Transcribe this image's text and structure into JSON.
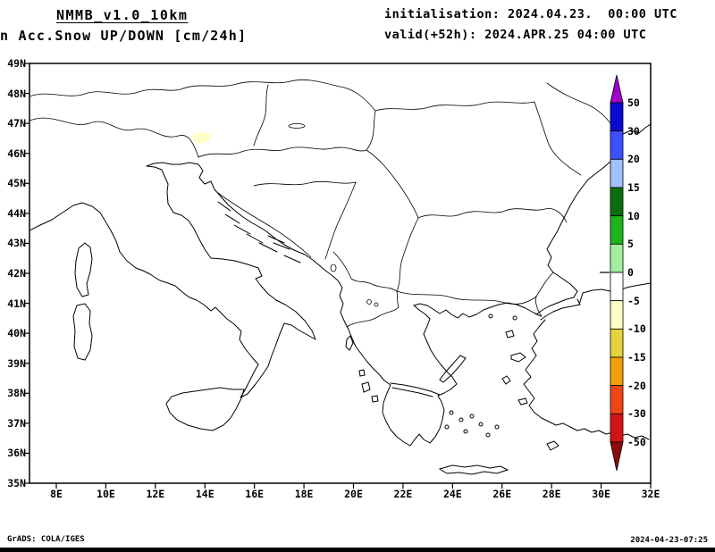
{
  "header": {
    "model": "NMMB_v1.0_10km",
    "product": "n Acc.Snow UP/DOWN [cm/24h]",
    "init": "initialisation: 2024.04.23.  00:00 UTC",
    "valid": "valid(+52h): 2024.APR.25 04:00 UTC"
  },
  "map": {
    "x_ticks": [
      "8E",
      "10E",
      "12E",
      "14E",
      "16E",
      "18E",
      "20E",
      "22E",
      "24E",
      "26E",
      "28E",
      "30E",
      "32E"
    ],
    "y_ticks": [
      "49N",
      "48N",
      "47N",
      "46N",
      "45N",
      "44N",
      "43N",
      "42N",
      "41N",
      "40N",
      "39N",
      "38N",
      "37N",
      "36N",
      "35N"
    ]
  },
  "colorbar": {
    "labels": [
      "50",
      "30",
      "20",
      "15",
      "10",
      "5",
      "0",
      "-5",
      "-10",
      "-15",
      "-20",
      "-30",
      "-50"
    ],
    "colors": [
      "#A000C8",
      "#0A0AD2",
      "#3C50FF",
      "#A0C0FF",
      "#0A6E0A",
      "#1EB41E",
      "#A0F0A0",
      "#FFFFFF",
      "#FFFFC8",
      "#E6D23C",
      "#F0A00A",
      "#F04614",
      "#D21414",
      "#8C0A0A"
    ]
  },
  "footer": {
    "left": "GrADS: COLA/IGES",
    "right": "2024-04-23-07:25"
  },
  "chart_data": {
    "type": "map",
    "title": "Acc.Snow UP/DOWN [cm/24h]",
    "model": "NMMB_v1.0_10km",
    "initialisation": "2024.04.23. 00:00 UTC",
    "valid": "(+52h) 2024.APR.25 04:00 UTC",
    "extent": {
      "lon_min_e": 8,
      "lon_max_e": 32,
      "lat_min_n": 35,
      "lat_max_n": 49
    },
    "units": "cm/24h",
    "colorbar_levels": [
      50,
      30,
      20,
      15,
      10,
      5,
      0,
      -5,
      -10,
      -15,
      -20,
      -30,
      -50
    ],
    "shaded_features": [
      {
        "description": "small pale-yellow patch (value between 0 and -5) near 13.7E 46.4N, Julian Alps / Slovenia",
        "color": "#FFFFC8"
      }
    ]
  }
}
